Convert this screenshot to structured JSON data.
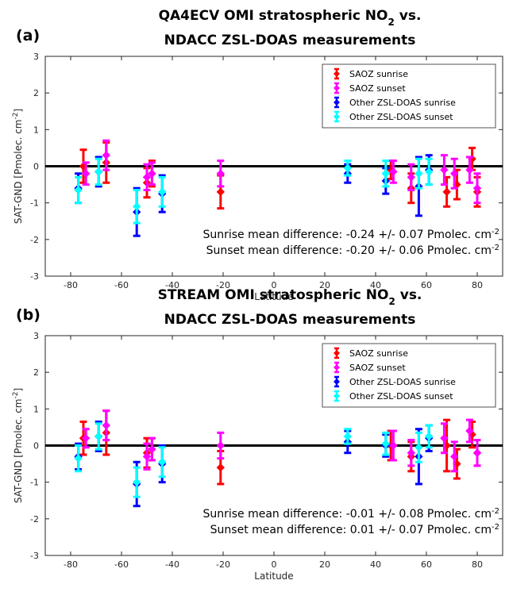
{
  "chart_data": [
    {
      "type": "scatter",
      "panel_label": "(a)",
      "title_line1": "QA4ECV OMI stratospheric NO",
      "title_sub": "2",
      "title_line1_tail": " vs.",
      "title_line2": "NDACC ZSL-DOAS measurements",
      "xlabel": "Latitude",
      "ylabel": "SAT-GND [Pmolec. cm",
      "ylabel_sup": "-2",
      "ylabel_tail": "]",
      "xlim": [
        -90,
        90
      ],
      "ylim": [
        -3,
        3
      ],
      "xticks": [
        -80,
        -60,
        -40,
        -20,
        0,
        20,
        40,
        60,
        80
      ],
      "yticks": [
        -3,
        -2,
        -1,
        0,
        1,
        2,
        3
      ],
      "legend_position": "top-right",
      "annotations": [
        {
          "text": "Sunrise mean difference: -0.24 +/-  0.07 Pmolec. cm",
          "sup": "-2"
        },
        {
          "text": "Sunset mean difference: -0.20 +/-  0.06 Pmolec. cm",
          "sup": "-2"
        }
      ],
      "series": [
        {
          "name": "SAOZ sunrise",
          "color": "#ff0000",
          "points": [
            {
              "x": -75,
              "y": 0.0,
              "err": 0.45
            },
            {
              "x": -66,
              "y": 0.1,
              "err": 0.55
            },
            {
              "x": -50,
              "y": -0.45,
              "err": 0.4
            },
            {
              "x": -48,
              "y": -0.2,
              "err": 0.35
            },
            {
              "x": -21,
              "y": -0.7,
              "err": 0.45
            },
            {
              "x": 46,
              "y": -0.1,
              "err": 0.25
            },
            {
              "x": 54,
              "y": -0.6,
              "err": 0.4
            },
            {
              "x": 68,
              "y": -0.7,
              "err": 0.4
            },
            {
              "x": 72,
              "y": -0.5,
              "err": 0.4
            },
            {
              "x": 78,
              "y": 0.2,
              "err": 0.3
            },
            {
              "x": 80,
              "y": -0.7,
              "err": 0.4
            }
          ]
        },
        {
          "name": "SAOZ sunset",
          "color": "#ff00ff",
          "points": [
            {
              "x": -74,
              "y": -0.2,
              "err": 0.3
            },
            {
              "x": -66,
              "y": 0.3,
              "err": 0.4
            },
            {
              "x": -50,
              "y": -0.3,
              "err": 0.35
            },
            {
              "x": -48,
              "y": -0.2,
              "err": 0.3
            },
            {
              "x": -21,
              "y": -0.2,
              "err": 0.35
            },
            {
              "x": 47,
              "y": -0.15,
              "err": 0.3
            },
            {
              "x": 54,
              "y": -0.3,
              "err": 0.35
            },
            {
              "x": 67,
              "y": -0.1,
              "err": 0.4
            },
            {
              "x": 71,
              "y": -0.2,
              "err": 0.4
            },
            {
              "x": 77,
              "y": -0.1,
              "err": 0.35
            },
            {
              "x": 80,
              "y": -0.6,
              "err": 0.4
            }
          ]
        },
        {
          "name": "Other ZSL-DOAS sunrise",
          "color": "#0000ff",
          "points": [
            {
              "x": -77,
              "y": -0.6,
              "err": 0.4
            },
            {
              "x": -69,
              "y": -0.15,
              "err": 0.4
            },
            {
              "x": -54,
              "y": -1.25,
              "err": 0.65
            },
            {
              "x": -44,
              "y": -0.75,
              "err": 0.5
            },
            {
              "x": 29,
              "y": -0.2,
              "err": 0.25
            },
            {
              "x": 44,
              "y": -0.4,
              "err": 0.35
            },
            {
              "x": 57,
              "y": -0.55,
              "err": 0.8
            },
            {
              "x": 61,
              "y": -0.1,
              "err": 0.4
            }
          ]
        },
        {
          "name": "Other ZSL-DOAS sunset",
          "color": "#00ffff",
          "points": [
            {
              "x": -77,
              "y": -0.65,
              "err": 0.35
            },
            {
              "x": -69,
              "y": -0.15,
              "err": 0.35
            },
            {
              "x": -54,
              "y": -1.1,
              "err": 0.45
            },
            {
              "x": -44,
              "y": -0.7,
              "err": 0.4
            },
            {
              "x": 29,
              "y": -0.05,
              "err": 0.2
            },
            {
              "x": 44,
              "y": -0.2,
              "err": 0.35
            },
            {
              "x": 57,
              "y": -0.2,
              "err": 0.4
            },
            {
              "x": 61,
              "y": -0.15,
              "err": 0.35
            }
          ]
        }
      ]
    },
    {
      "type": "scatter",
      "panel_label": "(b)",
      "title_line1": "STREAM OMI stratospheric NO",
      "title_sub": "2",
      "title_line1_tail": " vs.",
      "title_line2": "NDACC ZSL-DOAS measurements",
      "xlabel": "Latitude",
      "ylabel": "SAT-GND [Pmolec. cm",
      "ylabel_sup": "-2",
      "ylabel_tail": "]",
      "xlim": [
        -90,
        90
      ],
      "ylim": [
        -3,
        3
      ],
      "xticks": [
        -80,
        -60,
        -40,
        -20,
        0,
        20,
        40,
        60,
        80
      ],
      "yticks": [
        -3,
        -2,
        -1,
        0,
        1,
        2,
        3
      ],
      "legend_position": "top-right",
      "annotations": [
        {
          "text": "Sunrise mean difference: -0.01 +/-  0.08 Pmolec. cm",
          "sup": "-2"
        },
        {
          "text": "Sunset mean difference:  0.01 +/-  0.07 Pmolec. cm",
          "sup": "-2"
        }
      ],
      "series": [
        {
          "name": "SAOZ sunrise",
          "color": "#ff0000",
          "points": [
            {
              "x": -75,
              "y": 0.2,
              "err": 0.45
            },
            {
              "x": -66,
              "y": 0.35,
              "err": 0.6
            },
            {
              "x": -50,
              "y": -0.2,
              "err": 0.4
            },
            {
              "x": -48,
              "y": -0.1,
              "err": 0.3
            },
            {
              "x": -21,
              "y": -0.6,
              "err": 0.45
            },
            {
              "x": 46,
              "y": 0.0,
              "err": 0.4
            },
            {
              "x": 54,
              "y": -0.3,
              "err": 0.4
            },
            {
              "x": 68,
              "y": 0.0,
              "err": 0.7
            },
            {
              "x": 72,
              "y": -0.5,
              "err": 0.4
            },
            {
              "x": 78,
              "y": 0.3,
              "err": 0.35
            },
            {
              "x": 80,
              "y": -0.2,
              "err": 0.35
            }
          ]
        },
        {
          "name": "SAOZ sunset",
          "color": "#ff00ff",
          "points": [
            {
              "x": -74,
              "y": 0.2,
              "err": 0.25
            },
            {
              "x": -66,
              "y": 0.55,
              "err": 0.4
            },
            {
              "x": -50,
              "y": -0.3,
              "err": 0.35
            },
            {
              "x": -48,
              "y": -0.1,
              "err": 0.3
            },
            {
              "x": -21,
              "y": 0.0,
              "err": 0.35
            },
            {
              "x": 47,
              "y": 0.0,
              "err": 0.4
            },
            {
              "x": 54,
              "y": -0.2,
              "err": 0.35
            },
            {
              "x": 67,
              "y": 0.2,
              "err": 0.4
            },
            {
              "x": 71,
              "y": -0.3,
              "err": 0.4
            },
            {
              "x": 77,
              "y": 0.4,
              "err": 0.3
            },
            {
              "x": 80,
              "y": -0.2,
              "err": 0.35
            }
          ]
        },
        {
          "name": "Other ZSL-DOAS sunrise",
          "color": "#0000ff",
          "points": [
            {
              "x": -77,
              "y": -0.3,
              "err": 0.35
            },
            {
              "x": -69,
              "y": 0.25,
              "err": 0.4
            },
            {
              "x": -54,
              "y": -1.05,
              "err": 0.6
            },
            {
              "x": -44,
              "y": -0.5,
              "err": 0.5
            },
            {
              "x": 29,
              "y": 0.1,
              "err": 0.3
            },
            {
              "x": 44,
              "y": 0.0,
              "err": 0.3
            },
            {
              "x": 57,
              "y": -0.3,
              "err": 0.75
            },
            {
              "x": 61,
              "y": 0.2,
              "err": 0.35
            }
          ]
        },
        {
          "name": "Other ZSL-DOAS sunset",
          "color": "#00ffff",
          "points": [
            {
              "x": -77,
              "y": -0.35,
              "err": 0.35
            },
            {
              "x": -69,
              "y": 0.25,
              "err": 0.35
            },
            {
              "x": -54,
              "y": -1.0,
              "err": 0.4
            },
            {
              "x": -44,
              "y": -0.45,
              "err": 0.4
            },
            {
              "x": 29,
              "y": 0.25,
              "err": 0.2
            },
            {
              "x": 44,
              "y": 0.05,
              "err": 0.3
            },
            {
              "x": 57,
              "y": -0.05,
              "err": 0.4
            },
            {
              "x": 61,
              "y": 0.25,
              "err": 0.3
            }
          ]
        }
      ]
    }
  ]
}
